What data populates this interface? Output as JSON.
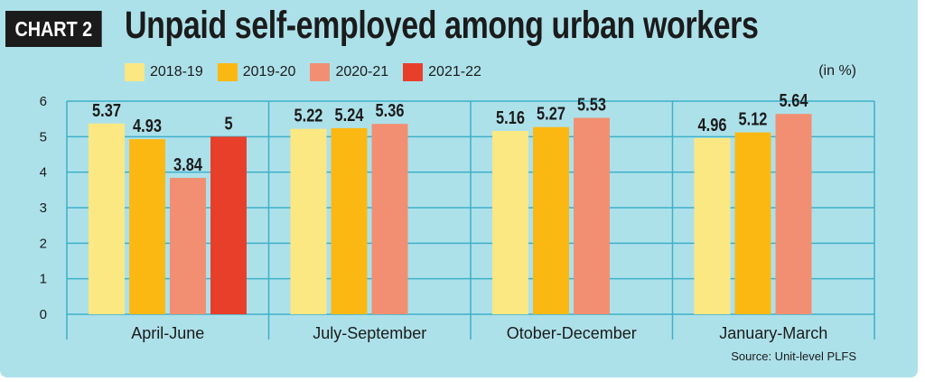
{
  "header": {
    "tag": "CHART 2",
    "title": "Unpaid self-employed among urban workers"
  },
  "unit_label": "(in %)",
  "source": "Source: Unit-level PLFS",
  "colors": {
    "background": "#ade1ea",
    "grid": "#3eb0c8",
    "2018-19": "#fbe882",
    "2019-20": "#fbb813",
    "2020-21": "#f28f72",
    "2021-22": "#e83f2b"
  },
  "chart_data": {
    "type": "bar",
    "title": "Unpaid self-employed among urban workers",
    "xlabel": "",
    "ylabel": "",
    "ylim": [
      0,
      6
    ],
    "yticks": [
      "0",
      "1",
      "2",
      "3",
      "4",
      "5",
      "6"
    ],
    "grid": true,
    "legend_position": "top",
    "categories": [
      "April-June",
      "July-September",
      "Otober-December",
      "January-March"
    ],
    "series": [
      {
        "name": "2018-19",
        "values": [
          5.37,
          5.22,
          5.16,
          4.96
        ],
        "labels": [
          "5.37",
          "5.22",
          "5.16",
          "4.96"
        ]
      },
      {
        "name": "2019-20",
        "values": [
          4.93,
          5.24,
          5.27,
          5.12
        ],
        "labels": [
          "4.93",
          "5.24",
          "5.27",
          "5.12"
        ]
      },
      {
        "name": "2020-21",
        "values": [
          3.84,
          5.36,
          5.53,
          5.64
        ],
        "labels": [
          "3.84",
          "5.36",
          "5.53",
          "5.64"
        ]
      },
      {
        "name": "2021-22",
        "values": [
          5,
          null,
          null,
          null
        ],
        "labels": [
          "5",
          "",
          "",
          ""
        ]
      }
    ]
  }
}
